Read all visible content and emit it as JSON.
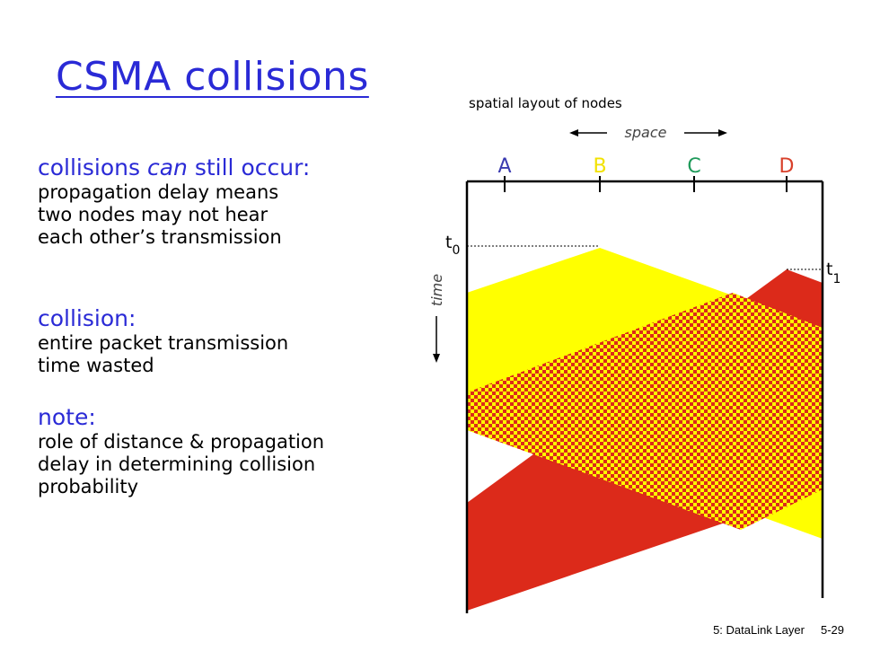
{
  "slide": {
    "title": "CSMA collisions",
    "footer_section": "5: DataLink Layer",
    "footer_page": "5-29"
  },
  "sections": [
    {
      "heading_parts": [
        "collisions ",
        "can",
        " still occur:"
      ],
      "lines": [
        "propagation delay means",
        "two nodes may not hear",
        "each other’s transmission"
      ]
    },
    {
      "heading_parts": [
        "collision:"
      ],
      "lines": [
        "entire packet transmission",
        "time wasted"
      ]
    },
    {
      "heading_parts": [
        "note:"
      ],
      "lines": [
        "role of distance & propagation",
        "delay in determining collision",
        "probability"
      ]
    }
  ],
  "diagram": {
    "caption": "spatial layout of nodes",
    "space_label": "space",
    "time_label": "time",
    "t0_label": "t",
    "t0_sub": "0",
    "t1_label": "t",
    "t1_sub": "1",
    "nodes": [
      {
        "label": "A",
        "color": "#3a3ab0"
      },
      {
        "label": "B",
        "color": "#f2e200"
      },
      {
        "label": "C",
        "color": "#1e9a5a"
      },
      {
        "label": "D",
        "color": "#d8402a"
      }
    ],
    "colors": {
      "signal_b": "#ffff00",
      "signal_d": "#dc2a1a",
      "collision_check_a": "#dc2a1a",
      "collision_check_b": "#ffff00",
      "title": "#2a2ad6"
    }
  }
}
